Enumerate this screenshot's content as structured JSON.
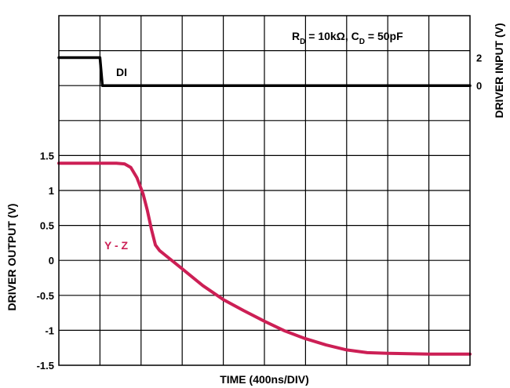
{
  "chart_data": {
    "type": "line",
    "xlabel": "TIME (400ns/DIV)",
    "ylabel_left": "DRIVER OUTPUT (V)",
    "ylabel_right": "DRIVER INPUT (V)",
    "annotation": {
      "rd_symbol": "R",
      "rd_sub": "D",
      "rd_value": " = 10kΩ, C",
      "cd_sub": "D",
      "cd_value": " = 50pF"
    },
    "x_divisions": 10,
    "grid": true,
    "left_axis": {
      "ylim": [
        -1.5,
        1.5
      ],
      "ticks": [
        {
          "value": 1.5,
          "label": "1.5"
        },
        {
          "value": 1,
          "label": "1"
        },
        {
          "value": 0.5,
          "label": "0.5"
        },
        {
          "value": 0,
          "label": "0"
        },
        {
          "value": -0.5,
          "label": "-0.5"
        },
        {
          "value": -1,
          "label": "-1"
        },
        {
          "value": -1.5,
          "label": "-1.5"
        }
      ]
    },
    "right_axis": {
      "ticks": [
        {
          "value": 2,
          "label": "2"
        },
        {
          "value": 0,
          "label": "0"
        }
      ]
    },
    "series": [
      {
        "name": "DI",
        "axis": "right",
        "color": "#000000",
        "points": [
          [
            0,
            2
          ],
          [
            1.0,
            2
          ],
          [
            1.06,
            0
          ],
          [
            10,
            0
          ]
        ]
      },
      {
        "name": "Y - Z",
        "axis": "left",
        "color": "#cc1f55",
        "points": [
          [
            0,
            1.39
          ],
          [
            1.0,
            1.39
          ],
          [
            1.4,
            1.39
          ],
          [
            1.6,
            1.38
          ],
          [
            1.75,
            1.33
          ],
          [
            1.9,
            1.18
          ],
          [
            2.05,
            0.95
          ],
          [
            2.15,
            0.72
          ],
          [
            2.25,
            0.45
          ],
          [
            2.35,
            0.22
          ],
          [
            2.45,
            0.14
          ],
          [
            2.6,
            0.07
          ],
          [
            3.0,
            -0.12
          ],
          [
            3.5,
            -0.36
          ],
          [
            4.0,
            -0.56
          ],
          [
            4.5,
            -0.72
          ],
          [
            5.0,
            -0.87
          ],
          [
            5.5,
            -1.01
          ],
          [
            6.0,
            -1.12
          ],
          [
            6.5,
            -1.21
          ],
          [
            7.0,
            -1.28
          ],
          [
            7.5,
            -1.32
          ],
          [
            8.0,
            -1.33
          ],
          [
            9.0,
            -1.34
          ],
          [
            10,
            -1.34
          ]
        ]
      }
    ]
  }
}
